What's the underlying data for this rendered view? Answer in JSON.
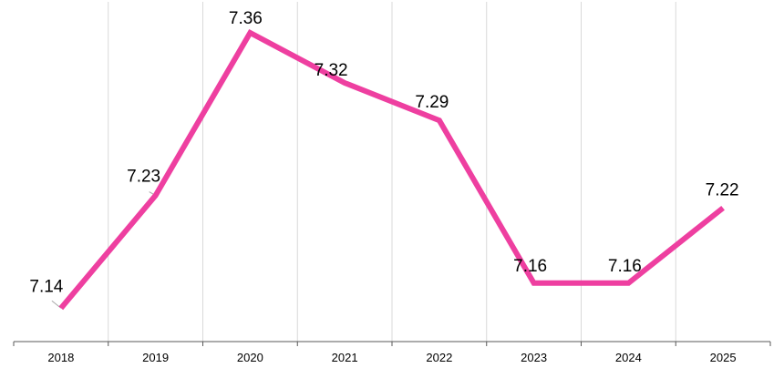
{
  "chart_data": {
    "type": "line",
    "categories": [
      "2018",
      "2019",
      "2020",
      "2021",
      "2022",
      "2023",
      "2024",
      "2025"
    ],
    "series": [
      {
        "values": [
          7.14,
          7.23,
          7.36,
          7.32,
          7.29,
          7.16,
          7.16,
          7.22
        ]
      }
    ],
    "value_labels": [
      "7.14",
      "7.23",
      "7.36",
      "7.32",
      "7.29",
      "7.16",
      "7.16",
      "7.22"
    ],
    "ylim": [
      7.13,
      7.36
    ],
    "grid": "vertical",
    "legend": "none",
    "colors": {
      "series": "#ee3fa0",
      "grid": "#d9d9d9",
      "axis": "#595959"
    }
  }
}
